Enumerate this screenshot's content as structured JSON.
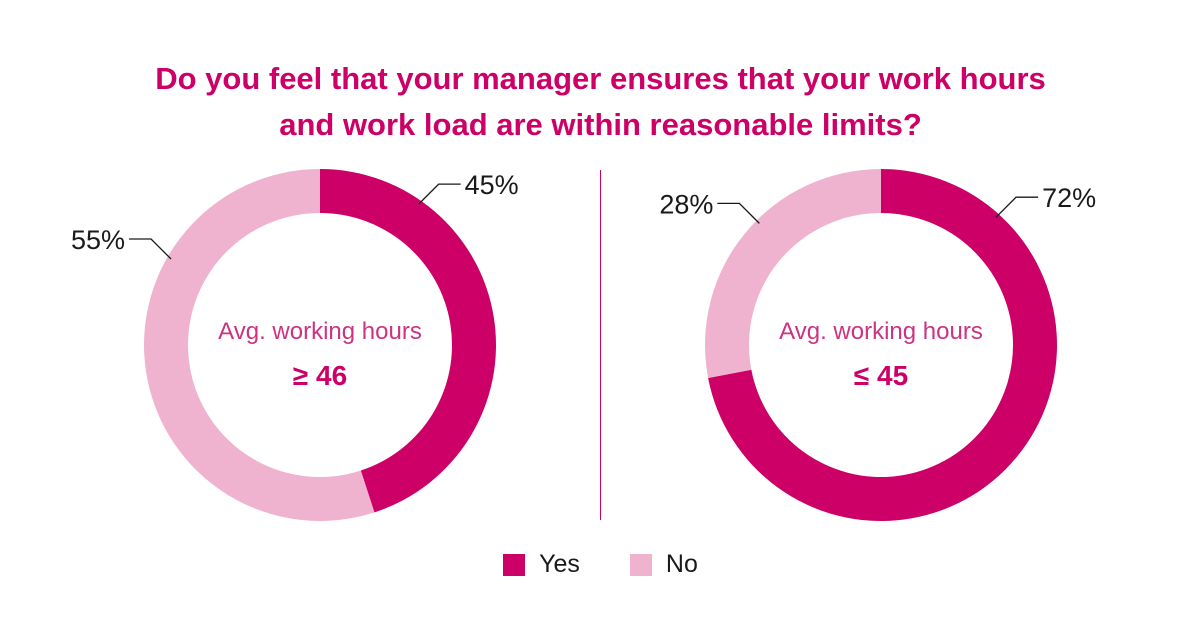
{
  "title_lines": [
    "Do you feel that your manager ensures that your work hours",
    "and work load are within reasonable limits?"
  ],
  "colors": {
    "yes": "#cc0066",
    "no": "#f0b3cf",
    "title": "#cc0066",
    "center_label": "#cc3380",
    "center_value": "#cc0066",
    "divider": "#cc0066",
    "text": "#1a1a1a"
  },
  "legend": {
    "yes_label": "Yes",
    "no_label": "No"
  },
  "chart_data": [
    {
      "type": "donut",
      "center_label": "Avg. working hours",
      "center_value": "≥ 46",
      "slices": [
        {
          "category": "Yes",
          "value": 45,
          "label": "45%"
        },
        {
          "category": "No",
          "value": 55,
          "label": "55%"
        }
      ]
    },
    {
      "type": "donut",
      "center_label": "Avg. working hours",
      "center_value": "≤ 45",
      "slices": [
        {
          "category": "Yes",
          "value": 72,
          "label": "72%"
        },
        {
          "category": "No",
          "value": 28,
          "label": "28%"
        }
      ]
    }
  ]
}
